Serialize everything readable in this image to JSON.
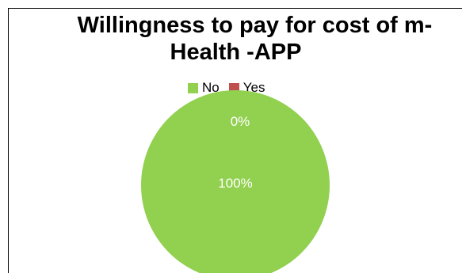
{
  "chart_data": {
    "type": "pie",
    "title": "Willingness to pay for cost of m-Health -APP",
    "title_lines": [
      "Willingness to pay for cost of m-",
      "Health -APP"
    ],
    "categories": [
      "No",
      "Yes"
    ],
    "values": [
      100,
      0
    ],
    "data_labels": [
      "100%",
      "0%"
    ],
    "colors": [
      "#92d050",
      "#c0504d"
    ],
    "legend_placement": "top"
  }
}
